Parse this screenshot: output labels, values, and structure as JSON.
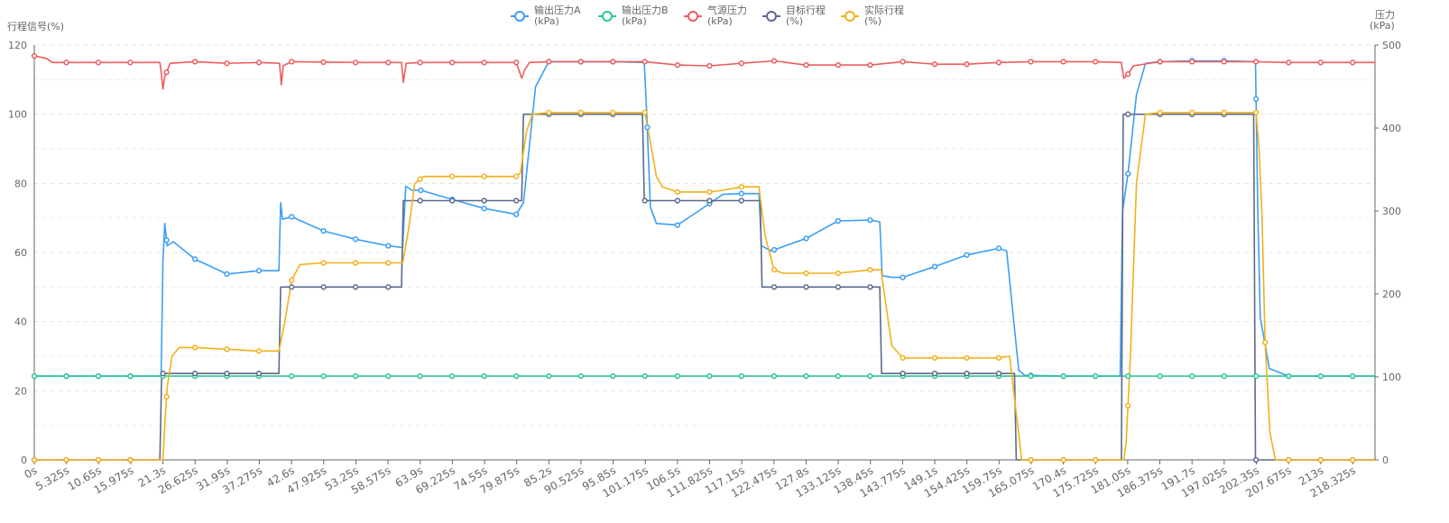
{
  "chart_data": {
    "type": "line",
    "y_left_title": "行程信号(%)",
    "y_right_title_line1": "压力",
    "y_right_title_line2": "(kPa)",
    "ylim_left": [
      0,
      120
    ],
    "ylim_right": [
      0,
      500
    ],
    "yticks_left": [
      "0",
      "20",
      "40",
      "60",
      "80",
      "100",
      "120"
    ],
    "yticks_right": [
      "0",
      "100",
      "200",
      "300",
      "400",
      "500"
    ],
    "x_range": [
      0,
      222
    ],
    "x_ticks": [
      "0s",
      "5.325s",
      "10.65s",
      "15.975s",
      "21.3s",
      "26.625s",
      "31.95s",
      "37.275s",
      "42.6s",
      "47.925s",
      "53.25s",
      "58.575s",
      "63.9s",
      "69.225s",
      "74.55s",
      "79.875s",
      "85.2s",
      "90.525s",
      "95.85s",
      "101.175s",
      "106.5s",
      "111.825s",
      "117.15s",
      "122.475s",
      "127.8s",
      "133.125s",
      "138.45s",
      "143.775s",
      "149.1s",
      "154.425s",
      "159.75s",
      "165.075s",
      "170.4s",
      "175.725s",
      "181.05s",
      "186.375s",
      "191.7s",
      "197.025s",
      "202.35s",
      "207.675s",
      "213s",
      "218.325s"
    ],
    "grid": true,
    "legend_position": "top-center",
    "series": [
      {
        "name": "输出压力A",
        "unit": "(kPa)",
        "axis": "right",
        "color": "#3a9ff5",
        "points": [
          [
            0,
            101
          ],
          [
            21,
            101
          ],
          [
            21.3,
            240
          ],
          [
            21.6,
            285
          ],
          [
            22,
            258
          ],
          [
            23,
            263
          ],
          [
            26.6,
            242
          ],
          [
            31.9,
            224
          ],
          [
            37.2,
            228
          ],
          [
            40.5,
            228
          ],
          [
            40.8,
            310
          ],
          [
            41.1,
            290
          ],
          [
            42.6,
            293
          ],
          [
            47.9,
            276
          ],
          [
            53.2,
            266
          ],
          [
            58.6,
            258
          ],
          [
            61,
            256
          ],
          [
            61.5,
            330
          ],
          [
            62.5,
            325
          ],
          [
            64,
            325
          ],
          [
            69.2,
            314
          ],
          [
            74.5,
            303
          ],
          [
            79.8,
            296
          ],
          [
            81,
            310
          ],
          [
            83,
            450
          ],
          [
            85.2,
            480
          ],
          [
            90.5,
            480
          ],
          [
            95.8,
            480
          ],
          [
            101,
            479
          ],
          [
            101.4,
            420
          ],
          [
            102,
            305
          ],
          [
            103,
            285
          ],
          [
            106.5,
            283
          ],
          [
            110,
            300
          ],
          [
            114,
            320
          ],
          [
            117.1,
            321
          ],
          [
            120,
            321
          ],
          [
            120.4,
            258
          ],
          [
            122,
            252
          ],
          [
            127.8,
            267
          ],
          [
            133.1,
            288
          ],
          [
            138.4,
            289
          ],
          [
            140,
            287
          ],
          [
            140.4,
            222
          ],
          [
            142,
            220
          ],
          [
            143.8,
            220
          ],
          [
            149.1,
            233
          ],
          [
            154.4,
            247
          ],
          [
            159.7,
            255
          ],
          [
            161,
            252
          ],
          [
            162,
            180
          ],
          [
            163,
            108
          ],
          [
            164,
            102
          ],
          [
            170.4,
            101
          ],
          [
            175.7,
            101
          ],
          [
            179.8,
            101
          ],
          [
            180.2,
            300
          ],
          [
            181.1,
            345
          ],
          [
            182.5,
            440
          ],
          [
            184,
            478
          ],
          [
            186.4,
            480
          ],
          [
            191.7,
            481
          ],
          [
            197,
            481
          ],
          [
            202.2,
            480
          ],
          [
            202.6,
            300
          ],
          [
            203,
            172
          ],
          [
            204.5,
            110
          ],
          [
            207.7,
            101
          ],
          [
            222,
            101
          ]
        ]
      },
      {
        "name": "输出压力B",
        "unit": "(kPa)",
        "axis": "right",
        "color": "#2dc698",
        "points": [
          [
            0,
            101
          ],
          [
            222,
            101
          ]
        ]
      },
      {
        "name": "气源压力",
        "unit": "(kPa)",
        "axis": "right",
        "color": "#ee5c5c",
        "points": [
          [
            0,
            487
          ],
          [
            2,
            484
          ],
          [
            3,
            479
          ],
          [
            20.8,
            479
          ],
          [
            21,
            468
          ],
          [
            21.3,
            447
          ],
          [
            21.6,
            462
          ],
          [
            22.5,
            478
          ],
          [
            26.6,
            480
          ],
          [
            31.9,
            478
          ],
          [
            37.2,
            479
          ],
          [
            40.6,
            478
          ],
          [
            40.9,
            452
          ],
          [
            41.2,
            475
          ],
          [
            42.6,
            480
          ],
          [
            53.2,
            479
          ],
          [
            60.8,
            479
          ],
          [
            61.1,
            455
          ],
          [
            61.6,
            478
          ],
          [
            63.9,
            479
          ],
          [
            79.8,
            479
          ],
          [
            80.7,
            460
          ],
          [
            81.2,
            470
          ],
          [
            82,
            479
          ],
          [
            85.2,
            480
          ],
          [
            101.1,
            480
          ],
          [
            106.5,
            476
          ],
          [
            111.8,
            475
          ],
          [
            117.1,
            478
          ],
          [
            122.5,
            481
          ],
          [
            127.8,
            476
          ],
          [
            138.5,
            476
          ],
          [
            143.8,
            480
          ],
          [
            149.1,
            477
          ],
          [
            154.4,
            477
          ],
          [
            159.7,
            479
          ],
          [
            165,
            480
          ],
          [
            170.4,
            480
          ],
          [
            175.7,
            480
          ],
          [
            180,
            479
          ],
          [
            180.4,
            460
          ],
          [
            181.1,
            465
          ],
          [
            182,
            475
          ],
          [
            186.4,
            480
          ],
          [
            202.3,
            480
          ],
          [
            207.7,
            479
          ],
          [
            213,
            479
          ],
          [
            222,
            479
          ]
        ]
      },
      {
        "name": "目标行程",
        "unit": "(%)",
        "axis": "left",
        "color": "#5a6a8c",
        "points": [
          [
            0,
            0
          ],
          [
            20.8,
            0
          ],
          [
            21.1,
            25
          ],
          [
            40.5,
            25
          ],
          [
            40.8,
            50
          ],
          [
            60.8,
            50
          ],
          [
            61.1,
            75
          ],
          [
            80.7,
            75
          ],
          [
            81,
            100
          ],
          [
            100.7,
            100
          ],
          [
            101,
            75
          ],
          [
            120.2,
            75
          ],
          [
            120.5,
            50
          ],
          [
            140,
            50
          ],
          [
            140.3,
            25
          ],
          [
            162.3,
            25
          ],
          [
            162.6,
            0
          ],
          [
            180,
            0
          ],
          [
            180.3,
            100
          ],
          [
            201.9,
            100
          ],
          [
            202.2,
            0
          ],
          [
            222,
            0
          ]
        ]
      },
      {
        "name": "实际行程",
        "unit": "(%)",
        "axis": "left",
        "color": "#f1b11b",
        "points": [
          [
            0,
            0
          ],
          [
            21.3,
            0
          ],
          [
            21.6,
            10
          ],
          [
            22,
            21
          ],
          [
            22.8,
            30
          ],
          [
            24,
            32.5
          ],
          [
            26.6,
            32.5
          ],
          [
            31.9,
            32
          ],
          [
            37.2,
            31.5
          ],
          [
            40.5,
            31.5
          ],
          [
            41.5,
            40
          ],
          [
            42.6,
            52
          ],
          [
            44,
            56.5
          ],
          [
            47.9,
            57
          ],
          [
            53.2,
            57
          ],
          [
            58.6,
            57
          ],
          [
            61,
            57
          ],
          [
            62,
            67
          ],
          [
            63,
            80
          ],
          [
            64.5,
            82
          ],
          [
            69.2,
            82
          ],
          [
            74.5,
            82
          ],
          [
            79.8,
            82
          ],
          [
            80.5,
            83
          ],
          [
            81.5,
            95
          ],
          [
            82.5,
            100
          ],
          [
            85.2,
            100.5
          ],
          [
            90.5,
            100.5
          ],
          [
            95.8,
            100.5
          ],
          [
            101.1,
            100.5
          ],
          [
            102,
            92
          ],
          [
            103,
            82
          ],
          [
            104,
            79
          ],
          [
            106.5,
            77.5
          ],
          [
            111.8,
            77.5
          ],
          [
            114,
            78
          ],
          [
            117.1,
            79
          ],
          [
            120,
            79
          ],
          [
            121,
            65
          ],
          [
            122.5,
            55
          ],
          [
            124,
            54
          ],
          [
            127.8,
            54
          ],
          [
            133.1,
            54
          ],
          [
            138.5,
            55
          ],
          [
            140.2,
            55
          ],
          [
            141,
            45
          ],
          [
            142,
            33
          ],
          [
            143.8,
            29.5
          ],
          [
            149.1,
            29.5
          ],
          [
            154.4,
            29.5
          ],
          [
            159.7,
            29.5
          ],
          [
            161.5,
            30
          ],
          [
            162.5,
            15
          ],
          [
            163.5,
            0
          ],
          [
            165,
            0
          ],
          [
            175.7,
            0
          ],
          [
            180.4,
            0
          ],
          [
            180.8,
            5
          ],
          [
            181.5,
            30
          ],
          [
            182.5,
            80
          ],
          [
            184,
            100
          ],
          [
            186.4,
            100.5
          ],
          [
            191.7,
            100.5
          ],
          [
            197,
            100.5
          ],
          [
            202.3,
            100.5
          ],
          [
            202.8,
            90
          ],
          [
            203.3,
            70
          ],
          [
            203.8,
            34
          ],
          [
            204.6,
            8
          ],
          [
            205.5,
            0
          ],
          [
            207.7,
            0
          ],
          [
            222,
            0
          ]
        ]
      }
    ],
    "markers": [
      {
        "series": 0,
        "x": [
          5.3,
          10.6,
          15.9,
          21.9,
          26.6,
          31.9,
          37.2,
          42.6,
          47.9,
          53.2,
          58.6,
          64,
          69.2,
          74.5,
          79.8,
          85.2,
          90.5,
          95.8,
          101.5,
          106.5,
          111.8,
          117.1,
          122.5,
          127.8,
          133.1,
          138.4,
          143.8,
          149.1,
          154.4,
          159.7,
          165,
          170.4,
          175.7,
          181.1,
          186.4,
          191.7,
          197,
          202.3,
          207.7,
          213,
          218.3
        ]
      },
      {
        "series": 1,
        "x": [
          0,
          5.3,
          10.6,
          15.9,
          21.3,
          26.6,
          31.9,
          37.2,
          42.6,
          47.9,
          53.2,
          58.6,
          63.9,
          69.2,
          74.5,
          79.8,
          85.2,
          90.5,
          95.8,
          101.1,
          106.5,
          111.8,
          117.1,
          122.5,
          127.8,
          133.1,
          138.4,
          143.8,
          149.1,
          154.4,
          159.7,
          165,
          170.4,
          175.7,
          181.1,
          186.4,
          191.7,
          197,
          202.3,
          207.7,
          213,
          218.3
        ]
      },
      {
        "series": 2,
        "x": [
          0,
          5.3,
          10.6,
          15.9,
          21.9,
          26.6,
          31.9,
          37.2,
          42.6,
          47.9,
          53.2,
          58.6,
          63.9,
          69.2,
          74.5,
          79.8,
          85.2,
          90.5,
          95.8,
          101.1,
          106.5,
          111.8,
          117.1,
          122.5,
          127.8,
          133.1,
          138.4,
          143.8,
          149.1,
          154.4,
          159.7,
          165,
          170.4,
          175.7,
          181.1,
          186.4,
          191.7,
          197,
          202.3,
          207.7,
          213,
          218.3
        ]
      },
      {
        "series": 3,
        "x": [
          0,
          5.3,
          10.6,
          15.9,
          21.3,
          26.6,
          31.9,
          37.2,
          42.6,
          47.9,
          53.2,
          58.6,
          63.9,
          69.2,
          74.5,
          79.8,
          85.2,
          90.5,
          95.8,
          101.1,
          106.5,
          111.8,
          117.1,
          122.5,
          127.8,
          133.1,
          138.4,
          143.8,
          149.1,
          154.4,
          159.7,
          165,
          170.4,
          175.7,
          181.1,
          186.4,
          191.7,
          197,
          202.3,
          207.7,
          213,
          218.3
        ]
      },
      {
        "series": 4,
        "x": [
          0,
          5.3,
          10.6,
          15.9,
          21.9,
          26.6,
          31.9,
          37.2,
          42.6,
          47.9,
          53.2,
          58.6,
          63.9,
          69.2,
          74.5,
          79.8,
          85.2,
          90.5,
          95.8,
          101.1,
          106.5,
          111.8,
          117.1,
          122.5,
          127.8,
          133.1,
          138.4,
          143.8,
          149.1,
          154.4,
          159.7,
          165,
          170.4,
          175.7,
          181.1,
          186.4,
          191.7,
          197,
          202.3,
          203.8,
          207.7,
          213,
          218.3
        ]
      }
    ]
  }
}
